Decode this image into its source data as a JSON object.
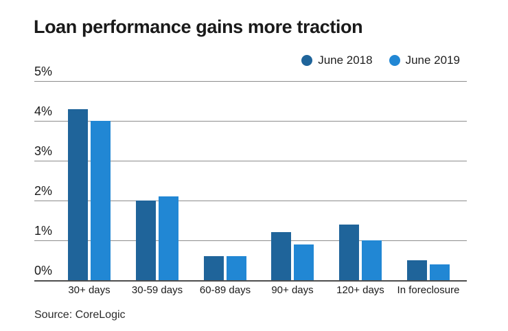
{
  "chart_data": {
    "type": "bar",
    "title": "Loan performance gains more traction",
    "categories": [
      "30+ days",
      "30-59 days",
      "60-89 days",
      "90+ days",
      "120+ days",
      "In foreclosure"
    ],
    "series": [
      {
        "name": "June 2018",
        "color": "#1f649a",
        "values": [
          4.3,
          2.0,
          0.6,
          1.2,
          1.4,
          0.5
        ]
      },
      {
        "name": "June 2019",
        "color": "#2187d4",
        "values": [
          4.0,
          2.1,
          0.6,
          0.9,
          1.0,
          0.4
        ]
      }
    ],
    "y_ticks": [
      "5%",
      "4%",
      "3%",
      "2%",
      "1%",
      "0%"
    ],
    "ylim": [
      0,
      5
    ],
    "unit": "%",
    "grid": "horizontal",
    "legend_position": "top-right",
    "source": "Source: CoreLogic"
  }
}
